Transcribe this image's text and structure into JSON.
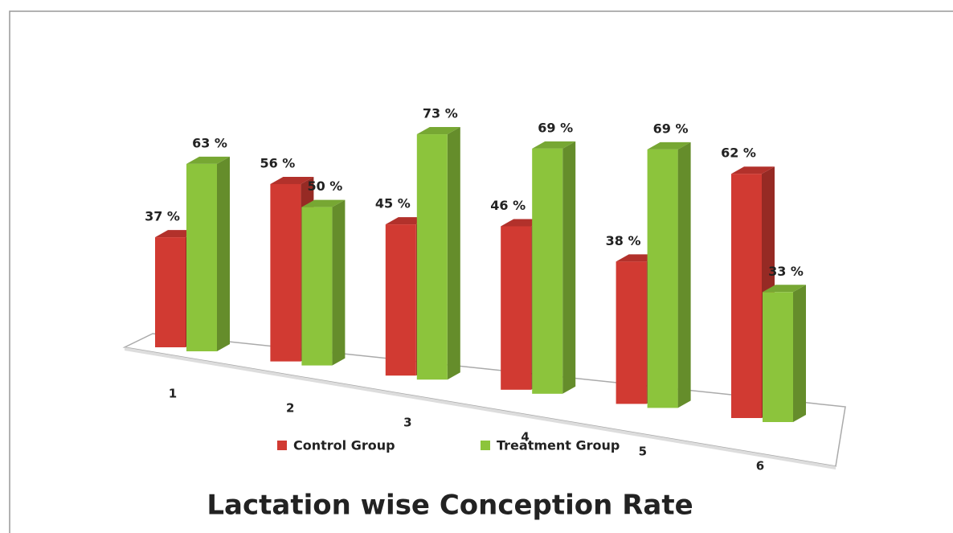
{
  "chart_data": {
    "type": "bar3d",
    "title": "Lactation wise Conception Rate",
    "categories": [
      "1",
      "2",
      "3",
      "4",
      "5",
      "6"
    ],
    "series": [
      {
        "name": "Control Group",
        "color": "#d13a32",
        "values": [
          37,
          56,
          45,
          46,
          38,
          62
        ],
        "value_labels": [
          "37 %",
          "56 %",
          "45 %",
          "46 %",
          "38 %",
          "62 %"
        ]
      },
      {
        "name": "Treatment Group",
        "color": "#8cc43c",
        "values": [
          63,
          50,
          73,
          69,
          69,
          33
        ],
        "value_labels": [
          "63 %",
          "50 %",
          "73 %",
          "69 %",
          "69 %",
          "33 %"
        ]
      }
    ],
    "legend": "bottom"
  }
}
